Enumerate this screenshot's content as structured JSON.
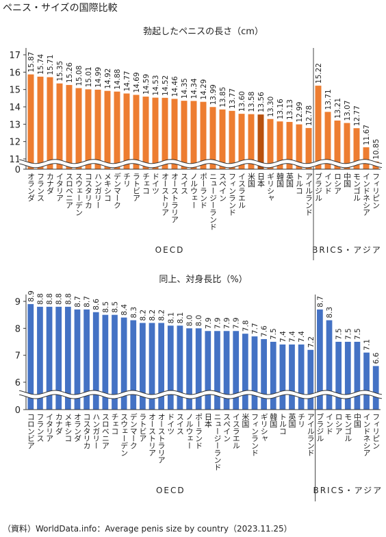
{
  "title": "ペニス・サイズの国際比較",
  "source": "（資料）WorldData.info：Average penis size by country（2023.11.25）",
  "chart_data": [
    {
      "type": "bar",
      "title": "勃起したペニスの長さ（cm）",
      "color": "#ed7d31",
      "highlight_color": "#b8520f",
      "highlight_category": "日本",
      "ylim": [
        0,
        17
      ],
      "yticks": [
        0,
        11,
        12,
        13,
        14,
        15,
        16,
        17
      ],
      "axis_break": true,
      "groups": [
        {
          "name": "OECD",
          "categories": [
            "オランダ",
            "フランス",
            "カナダ",
            "イタリア",
            "スロベニア",
            "スウェーデン",
            "コスタリカ",
            "ハンガリー",
            "メキシコ",
            "デンマーク",
            "チリ",
            "ラトビア",
            "チェコ",
            "ドイツ",
            "オーストリア",
            "オーストラリア",
            "スイス",
            "ノルウェー",
            "ポーランド",
            "ニュージーランド",
            "スペイン",
            "フィンランド",
            "イスラエル",
            "米国",
            "日本",
            "ギリシャ",
            "韓国",
            "英国",
            "トルコ",
            "アイルランド"
          ],
          "values": [
            15.87,
            15.74,
            15.71,
            15.35,
            15.26,
            15.08,
            15.01,
            14.99,
            14.92,
            14.88,
            14.77,
            14.69,
            14.59,
            14.53,
            14.52,
            14.46,
            14.35,
            14.34,
            14.29,
            13.99,
            13.85,
            13.77,
            13.6,
            13.58,
            13.56,
            13.3,
            13.16,
            13.13,
            12.99,
            12.78
          ],
          "value_labels": [
            "15.87",
            "15.74",
            "15.71",
            "15.35",
            "15.26",
            "15.08",
            "15.01",
            "14.99",
            "14.92",
            "14.88",
            "14.77",
            "14.69",
            "14.59",
            "14.53",
            "14.52",
            "14.46",
            "14.35",
            "14.34",
            "14.29",
            "13.99",
            "13.85",
            "13.77",
            "13.60",
            "13.58",
            "13.56",
            "13.30",
            "13.16",
            "13.13",
            "12.99",
            "12.78"
          ]
        },
        {
          "name": "BRICS・アジア",
          "categories": [
            "ブラジル",
            "インド",
            "ロシア",
            "中国",
            "モンゴル",
            "インドネシア",
            "フィリピン"
          ],
          "values": [
            15.22,
            13.71,
            13.21,
            13.07,
            12.77,
            11.67,
            10.85
          ],
          "value_labels": [
            "15.22",
            "13.71",
            "13.21",
            "13.07",
            "12.77",
            "11.67",
            "10.85"
          ]
        }
      ]
    },
    {
      "type": "bar",
      "title": "同上、対身長比（%）",
      "color": "#4472c4",
      "ylim": [
        0,
        9
      ],
      "yticks": [
        0,
        6,
        7,
        8,
        9
      ],
      "axis_break": true,
      "groups": [
        {
          "name": "OECD",
          "categories": [
            "コロンビア",
            "フランス",
            "イタリア",
            "カナダ",
            "メキシコ",
            "オランダ",
            "コスタリカ",
            "ハンガリー",
            "スロベニア",
            "チェコ",
            "スウェーデン",
            "デンマーク",
            "ラトビア",
            "オーストリア",
            "オーストラリア",
            "ドイツ",
            "スイス",
            "ノルウェー",
            "ポーランド",
            "日本",
            "ニュージーランド",
            "スペイン",
            "イスラエル",
            "米国",
            "フィンランド",
            "ギリシャ",
            "韓国",
            "トルコ",
            "英国",
            "チリ",
            "アイルランド"
          ],
          "values": [
            8.9,
            8.8,
            8.8,
            8.8,
            8.8,
            8.7,
            8.7,
            8.6,
            8.5,
            8.5,
            8.4,
            8.3,
            8.2,
            8.2,
            8.2,
            8.1,
            8.1,
            8,
            8,
            7.9,
            7.9,
            7.9,
            7.9,
            7.8,
            7.7,
            7.6,
            7.5,
            7.4,
            7.4,
            7.4,
            7.2
          ],
          "value_labels": [
            "8.9",
            "8.8",
            "8.8",
            "8.8",
            "8.8",
            "8.7",
            "8.7",
            "8.6",
            "8.5",
            "8.5",
            "8.4",
            "8.3",
            "8.2",
            "8.2",
            "8.2",
            "8.1",
            "8.1",
            "8.0",
            "8.0",
            "7.9",
            "7.9",
            "7.9",
            "7.9",
            "7.8",
            "7.7",
            "7.6",
            "7.5",
            "7.4",
            "7.4",
            "7.4",
            "7.2"
          ]
        },
        {
          "name": "BRICS・アジア",
          "categories": [
            "ブラジル",
            "インド",
            "ロシア",
            "モンゴル",
            "中国",
            "インドネシア",
            "フィリピン"
          ],
          "values": [
            8.7,
            8.3,
            7.5,
            7.5,
            7.5,
            7.1,
            6.6
          ],
          "value_labels": [
            "8.7",
            "8.3",
            "7.5",
            "7.5",
            "7.5",
            "7.1",
            "6.6"
          ]
        }
      ]
    }
  ]
}
